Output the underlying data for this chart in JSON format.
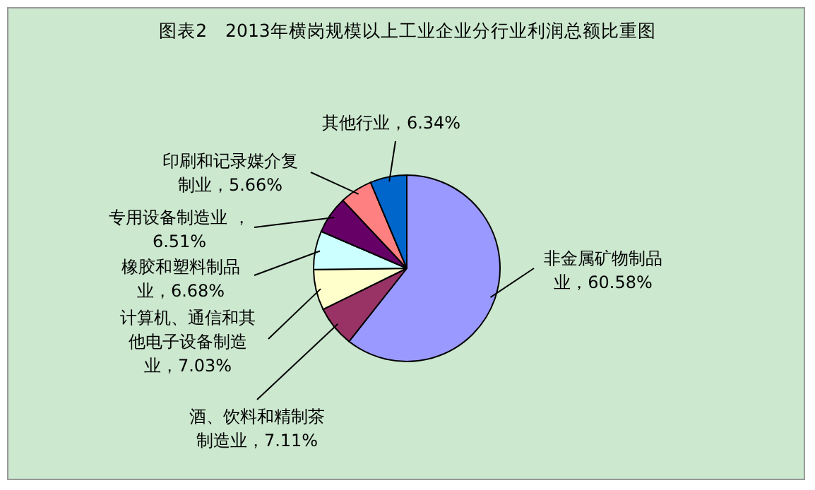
{
  "chart_data": {
    "type": "pie",
    "title": "图表2　2013年横岗规模以上工业企业分行业利润总额比重图",
    "categories": [
      "非金属矿物制品业",
      "酒、饮料和精制茶制造业",
      "计算机、通信和其他电子设备制造业",
      "橡胶和塑料制品业",
      "专用设备制造业",
      "印刷和记录媒介复制业",
      "其他行业"
    ],
    "values": [
      60.58,
      7.11,
      7.03,
      6.68,
      6.51,
      5.66,
      6.34
    ],
    "colors": [
      "#9999ff",
      "#993366",
      "#ffffcc",
      "#ccffff",
      "#660066",
      "#ff8080",
      "#0066cc"
    ],
    "value_labels": [
      "，60.58%",
      "，7.11%",
      "，7.03%",
      "，6.68%",
      " ，6.51%",
      "，5.66%",
      "，6.34%"
    ]
  }
}
